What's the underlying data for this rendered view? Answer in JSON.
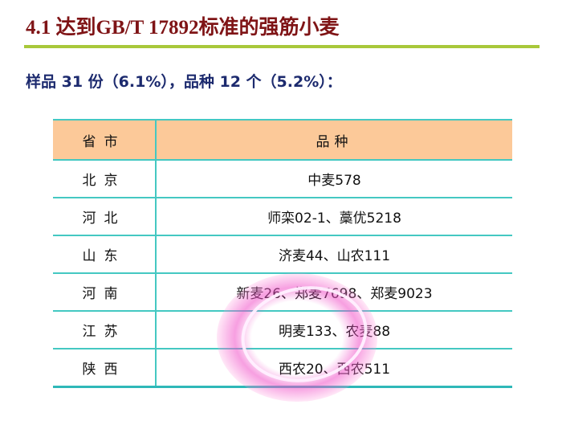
{
  "title": "4.1 达到GB/T 17892标准的强筋小麦",
  "subtitle": "样品 31 份（6.1%），品种 12 个（5.2%）：",
  "table": {
    "headers": [
      "省市",
      "品种"
    ],
    "rows": [
      [
        "北京",
        "中麦578"
      ],
      [
        "河北",
        "师栾02-1、藁优5218"
      ],
      [
        "山东",
        "济麦44、山农111"
      ],
      [
        "河南",
        "新麦26、郑麦7698、郑麦9023"
      ],
      [
        "江苏",
        "明麦133、农麦88"
      ],
      [
        "陕西",
        "西农20、西农511"
      ]
    ]
  },
  "colors": {
    "title": "#7f1416",
    "subtitle": "#1c2a6e",
    "header_bg": "#fcc999",
    "grid": "#44c8c2",
    "rule": "#a8c83a",
    "highlight": "#f050c8"
  }
}
